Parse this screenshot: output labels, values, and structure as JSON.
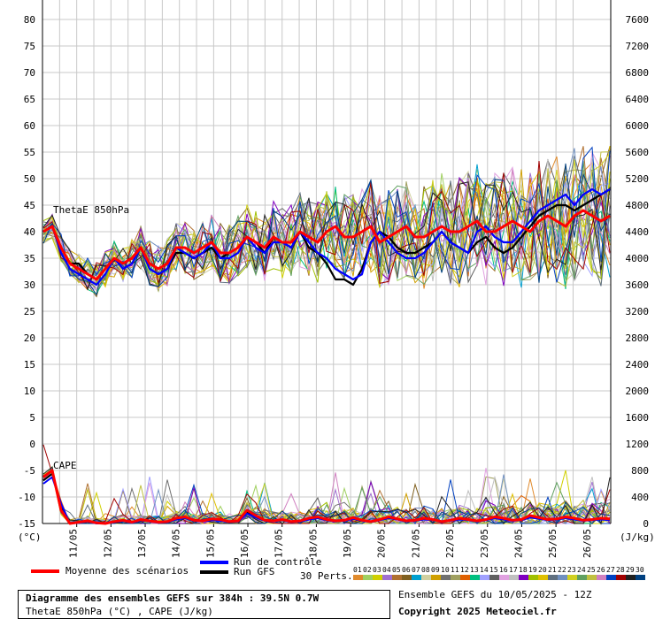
{
  "chart_data": {
    "type": "line",
    "x_dates": [
      "11/05",
      "12/05",
      "13/05",
      "14/05",
      "15/05",
      "16/05",
      "17/05",
      "18/05",
      "19/05",
      "20/05",
      "21/05",
      "22/05",
      "23/05",
      "24/05",
      "25/05",
      "26/05"
    ],
    "left_axis": {
      "ticks": [
        80,
        75,
        70,
        65,
        60,
        55,
        50,
        45,
        40,
        35,
        30,
        25,
        20,
        15,
        10,
        5,
        0,
        -5,
        -10,
        -15
      ],
      "unit": "(°C)",
      "ylim": [
        -15,
        80
      ]
    },
    "right_axis": {
      "ticks": [
        7600,
        7200,
        6800,
        6400,
        6000,
        5600,
        5200,
        4800,
        4400,
        4000,
        3600,
        3200,
        2800,
        2400,
        2000,
        1600,
        1200,
        800,
        400,
        0
      ],
      "unit": "(J/kg)",
      "ylim": [
        0,
        7600
      ]
    },
    "grid": true,
    "annotations": {
      "thetae": "ThetaE 850hPa",
      "cape": "CAPE"
    },
    "thetae": {
      "mean": [
        40,
        41,
        37,
        34,
        33,
        32,
        31,
        33,
        35,
        34,
        35,
        37,
        34,
        33,
        34,
        37,
        37,
        36,
        37,
        38,
        36,
        36,
        37,
        39,
        38,
        37,
        39,
        38,
        38,
        40,
        39,
        38,
        40,
        41,
        39,
        39,
        40,
        41,
        38,
        39,
        40,
        41,
        39,
        39,
        40,
        41,
        40,
        40,
        41,
        42,
        40,
        40,
        41,
        42,
        41,
        40,
        42,
        43,
        42,
        41,
        43,
        44,
        43,
        42,
        43
      ],
      "control": [
        40,
        41,
        36,
        33,
        32,
        31,
        30,
        32,
        35,
        33,
        34,
        37,
        33,
        32,
        33,
        37,
        36,
        35,
        36,
        38,
        35,
        35,
        36,
        39,
        37,
        36,
        38,
        38,
        37,
        40,
        38,
        36,
        35,
        33,
        32,
        31,
        32,
        38,
        40,
        38,
        36,
        35,
        35,
        36,
        38,
        40,
        38,
        37,
        36,
        40,
        41,
        39,
        38,
        38,
        40,
        42,
        44,
        45,
        46,
        47,
        45,
        47,
        48,
        47,
        48
      ],
      "gfs": [
        40,
        41,
        37,
        34,
        34,
        32,
        31,
        33,
        35,
        34,
        35,
        37,
        33,
        32,
        33,
        36,
        36,
        35,
        36,
        37,
        35,
        36,
        37,
        39,
        38,
        36,
        39,
        38,
        37,
        40,
        37,
        36,
        34,
        31,
        31,
        30,
        33,
        38,
        40,
        39,
        37,
        36,
        36,
        37,
        38,
        40,
        38,
        37,
        36,
        38,
        39,
        37,
        36,
        37,
        39,
        41,
        43,
        44,
        45,
        45,
        44,
        45,
        46,
        47,
        48
      ]
    },
    "cape": {
      "mean": [
        700,
        800,
        200,
        0,
        20,
        40,
        10,
        0,
        30,
        50,
        20,
        60,
        40,
        20,
        30,
        80,
        100,
        50,
        40,
        70,
        60,
        30,
        40,
        200,
        120,
        50,
        40,
        60,
        30,
        40,
        80,
        100,
        60,
        40,
        50,
        90,
        50,
        30,
        60,
        100,
        70,
        40,
        50,
        80,
        60,
        30,
        50,
        80,
        60,
        40,
        60,
        100,
        80,
        50,
        60,
        120,
        90,
        60,
        70,
        100,
        80,
        50,
        60,
        80,
        70
      ],
      "control": [
        600,
        700,
        300,
        0,
        10,
        30,
        0,
        0,
        20,
        40,
        10,
        50,
        30,
        10,
        20,
        60,
        80,
        40,
        30,
        50,
        40,
        20,
        30,
        150,
        90,
        40,
        30,
        50,
        20,
        30,
        60,
        80,
        50,
        30,
        40,
        70,
        40,
        20,
        50,
        80,
        60,
        30,
        40,
        60,
        50,
        20,
        40,
        60,
        50,
        30,
        50,
        80,
        60,
        40,
        50,
        90,
        70,
        50,
        60,
        80,
        60,
        40,
        50,
        60,
        50
      ],
      "gfs": [
        650,
        750,
        250,
        0,
        15,
        35,
        5,
        0,
        25,
        45,
        15,
        55,
        35,
        15,
        25,
        70,
        90,
        45,
        35,
        60,
        50,
        25,
        35,
        180,
        100,
        45,
        35,
        55,
        25,
        35,
        70,
        90,
        55,
        35,
        45,
        80,
        45,
        25,
        55,
        90,
        65,
        35,
        45,
        70,
        55,
        25,
        45,
        70,
        55,
        35,
        55,
        90,
        70,
        45,
        55,
        110,
        80,
        55,
        65,
        90,
        70,
        45,
        55,
        70,
        60
      ]
    },
    "perts_count": 30
  },
  "legend": {
    "mean_label": "Moyenne des scénarios",
    "control_label": "Run de contrôle",
    "gfs_label": "Run GFS",
    "perts_label": "30 Perts.",
    "mean_color": "#ff0000",
    "control_color": "#0000ff",
    "gfs_color": "#000000",
    "pert_ids": [
      "01",
      "02",
      "03",
      "04",
      "05",
      "06",
      "07",
      "08",
      "09",
      "10",
      "11",
      "12",
      "13",
      "14",
      "15",
      "16",
      "17",
      "18",
      "19",
      "20",
      "21",
      "22",
      "23",
      "24",
      "25",
      "26",
      "27",
      "28",
      "29",
      "30"
    ],
    "pert_colors": [
      "#e08a2c",
      "#a0d060",
      "#d0d000",
      "#a070d0",
      "#b07030",
      "#806020",
      "#00a0d0",
      "#d0d0a0",
      "#d0a000",
      "#707070",
      "#a0a060",
      "#e06000",
      "#00c080",
      "#a0a0ff",
      "#606060",
      "#e0a0e0",
      "#c0c0c0",
      "#8000c0",
      "#a0c000",
      "#e0c000",
      "#607080",
      "#7090c0",
      "#d0d020",
      "#60a060",
      "#c0c040",
      "#d080c0",
      "#0040c0",
      "#a00000",
      "#202020",
      "#004080"
    ]
  },
  "footer": {
    "title": "Diagramme des ensembles GEFS sur 384h : 39.5N 0.7W",
    "subtitle": "ThetaE 850hPa (°C) , CAPE (J/kg)",
    "run_info": "Ensemble GEFS du 10/05/2025 - 12Z",
    "copyright": "Copyright 2025 Meteociel.fr"
  }
}
